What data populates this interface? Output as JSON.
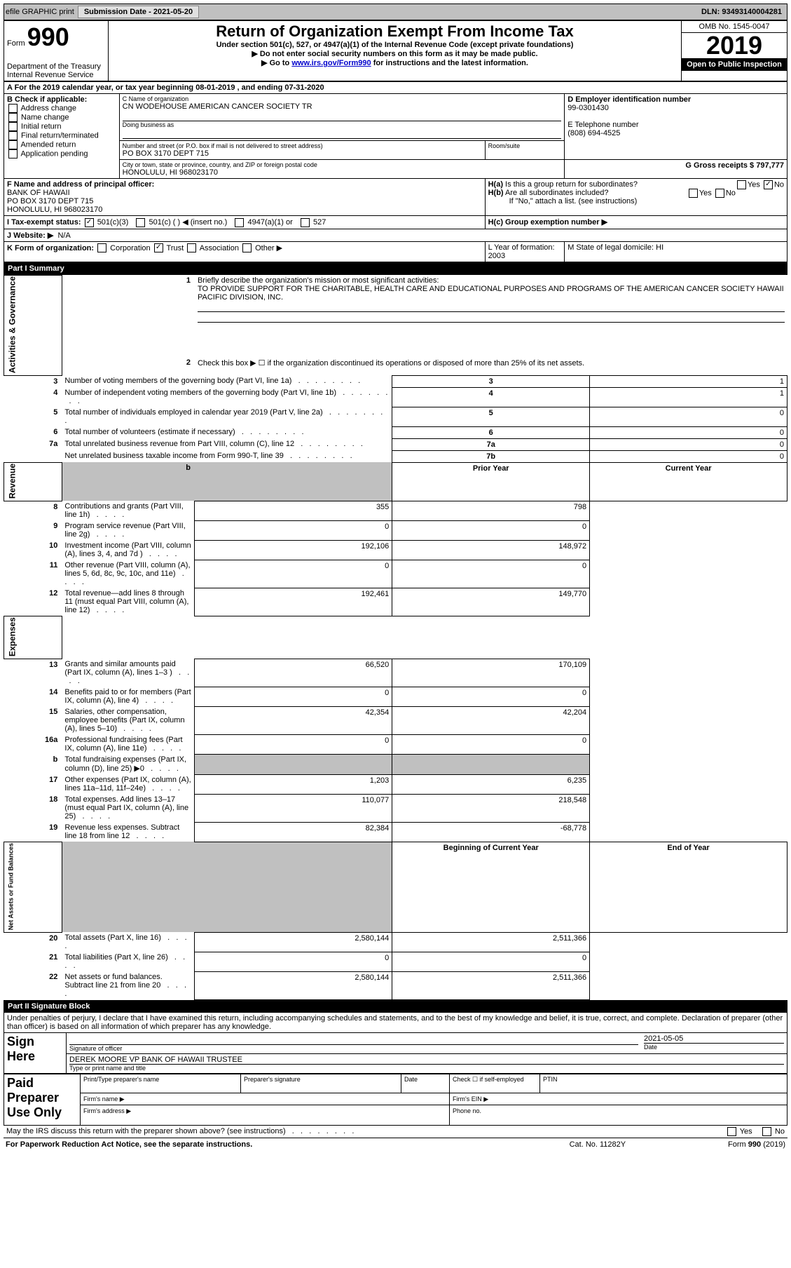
{
  "header": {
    "efile_label": "efile GRAPHIC print",
    "submission_label": "Submission Date - 2021-05-20",
    "dln_label": "DLN: 93493140004281"
  },
  "form_header": {
    "form_prefix": "Form",
    "form_number": "990",
    "title": "Return of Organization Exempt From Income Tax",
    "subtitle": "Under section 501(c), 527, or 4947(a)(1) of the Internal Revenue Code (except private foundations)",
    "note1": "▶ Do not enter social security numbers on this form as it may be made public.",
    "note2_prefix": "▶ Go to ",
    "note2_link": "www.irs.gov/Form990",
    "note2_suffix": " for instructions and the latest information.",
    "dept": "Department of the Treasury",
    "irs": "Internal Revenue Service",
    "omb": "OMB No. 1545-0047",
    "year": "2019",
    "open_public": "Open to Public Inspection"
  },
  "section_a": {
    "line_a": "A For the 2019 calendar year, or tax year beginning 08-01-2019    , and ending 07-31-2020",
    "b_label": "B Check if applicable:",
    "b_items": [
      "Address change",
      "Name change",
      "Initial return",
      "Final return/terminated",
      "Amended return",
      "Application pending"
    ],
    "c_label": "C Name of organization",
    "c_value": "CN WODEHOUSE AMERICAN CANCER SOCIETY TR",
    "dba_label": "Doing business as",
    "c_street_label": "Number and street (or P.O. box if mail is not delivered to street address)",
    "c_street": "PO BOX 3170 DEPT 715",
    "c_room_label": "Room/suite",
    "c_city_label": "City or town, state or province, country, and ZIP or foreign postal code",
    "c_city": "HONOLULU, HI  968023170",
    "d_label": "D Employer identification number",
    "d_value": "99-0301430",
    "e_label": "E Telephone number",
    "e_value": "(808) 694-4525",
    "g_label": "G Gross receipts $ 797,777",
    "f_label": "F  Name and address of principal officer:",
    "f_name": "BANK OF HAWAII",
    "f_street": "PO BOX 3170 DEPT 715",
    "f_city": "HONOLULU, HI  968023170",
    "ha_label": "H(a)  Is this a group return for subordinates?",
    "hb_label": "H(b)  Are all subordinates included?",
    "hb_note": "If \"No,\" attach a list. (see instructions)",
    "hc_label": "H(c)  Group exemption number ▶",
    "yes": "Yes",
    "no": "No",
    "i_label": "I   Tax-exempt status:",
    "i_opt1": "501(c)(3)",
    "i_opt2": "501(c) (   ) ◀ (insert no.)",
    "i_opt3": "4947(a)(1) or",
    "i_opt4": "527",
    "j_label": "J   Website: ▶",
    "j_value": "N/A",
    "k_label": "K Form of organization:",
    "k_opts": [
      "Corporation",
      "Trust",
      "Association",
      "Other ▶"
    ],
    "l_label": "L Year of formation: 2003",
    "m_label": "M State of legal domicile: HI"
  },
  "part1": {
    "header": "Part I      Summary",
    "line1_label": "Briefly describe the organization's mission or most significant activities:",
    "line1_text": "TO PROVIDE SUPPORT FOR THE CHARITABLE, HEALTH CARE AND EDUCATIONAL PURPOSES AND PROGRAMS OF THE AMERICAN CANCER SOCIETY HAWAII PACIFIC DIVISION, INC.",
    "line2": "Check this box ▶ ☐  if the organization discontinued its operations or disposed of more than 25% of its net assets.",
    "vcat1": "Activities & Governance",
    "vcat2": "Revenue",
    "vcat3": "Expenses",
    "vcat4": "Net Assets or Fund Balances",
    "prior_year": "Prior Year",
    "current_year": "Current Year",
    "begin_year": "Beginning of Current Year",
    "end_year": "End of Year",
    "rows_gov": [
      {
        "n": "3",
        "d": "Number of voting members of the governing body (Part VI, line 1a)",
        "box": "3",
        "v": "1"
      },
      {
        "n": "4",
        "d": "Number of independent voting members of the governing body (Part VI, line 1b)",
        "box": "4",
        "v": "1"
      },
      {
        "n": "5",
        "d": "Total number of individuals employed in calendar year 2019 (Part V, line 2a)",
        "box": "5",
        "v": "0"
      },
      {
        "n": "6",
        "d": "Total number of volunteers (estimate if necessary)",
        "box": "6",
        "v": "0"
      },
      {
        "n": "7a",
        "d": "Total unrelated business revenue from Part VIII, column (C), line 12",
        "box": "7a",
        "v": "0"
      },
      {
        "n": "",
        "d": "Net unrelated business taxable income from Form 990-T, line 39",
        "box": "7b",
        "v": "0"
      }
    ],
    "rows_rev": [
      {
        "n": "8",
        "d": "Contributions and grants (Part VIII, line 1h)",
        "p": "355",
        "c": "798"
      },
      {
        "n": "9",
        "d": "Program service revenue (Part VIII, line 2g)",
        "p": "0",
        "c": "0"
      },
      {
        "n": "10",
        "d": "Investment income (Part VIII, column (A), lines 3, 4, and 7d )",
        "p": "192,106",
        "c": "148,972"
      },
      {
        "n": "11",
        "d": "Other revenue (Part VIII, column (A), lines 5, 6d, 8c, 9c, 10c, and 11e)",
        "p": "0",
        "c": "0"
      },
      {
        "n": "12",
        "d": "Total revenue—add lines 8 through 11 (must equal Part VIII, column (A), line 12)",
        "p": "192,461",
        "c": "149,770"
      }
    ],
    "rows_exp": [
      {
        "n": "13",
        "d": "Grants and similar amounts paid (Part IX, column (A), lines 1–3 )",
        "p": "66,520",
        "c": "170,109"
      },
      {
        "n": "14",
        "d": "Benefits paid to or for members (Part IX, column (A), line 4)",
        "p": "0",
        "c": "0"
      },
      {
        "n": "15",
        "d": "Salaries, other compensation, employee benefits (Part IX, column (A), lines 5–10)",
        "p": "42,354",
        "c": "42,204"
      },
      {
        "n": "16a",
        "d": "Professional fundraising fees (Part IX, column (A), line 11e)",
        "p": "0",
        "c": "0"
      },
      {
        "n": "b",
        "d": "Total fundraising expenses (Part IX, column (D), line 25) ▶0",
        "p": "",
        "c": "",
        "gray": true
      },
      {
        "n": "17",
        "d": "Other expenses (Part IX, column (A), lines 11a–11d, 11f–24e)",
        "p": "1,203",
        "c": "6,235"
      },
      {
        "n": "18",
        "d": "Total expenses. Add lines 13–17 (must equal Part IX, column (A), line 25)",
        "p": "110,077",
        "c": "218,548"
      },
      {
        "n": "19",
        "d": "Revenue less expenses. Subtract line 18 from line 12",
        "p": "82,384",
        "c": "-68,778"
      }
    ],
    "rows_net": [
      {
        "n": "20",
        "d": "Total assets (Part X, line 16)",
        "p": "2,580,144",
        "c": "2,511,366"
      },
      {
        "n": "21",
        "d": "Total liabilities (Part X, line 26)",
        "p": "0",
        "c": "0"
      },
      {
        "n": "22",
        "d": "Net assets or fund balances. Subtract line 21 from line 20",
        "p": "2,580,144",
        "c": "2,511,366"
      }
    ]
  },
  "part2": {
    "header": "Part II      Signature Block",
    "declaration": "Under penalties of perjury, I declare that I have examined this return, including accompanying schedules and statements, and to the best of my knowledge and belief, it is true, correct, and complete. Declaration of preparer (other than officer) is based on all information of which preparer has any knowledge.",
    "sign_here": "Sign Here",
    "sig_officer": "Signature of officer",
    "sig_date": "2021-05-05",
    "date_label": "Date",
    "officer_name": "DEREK MOORE VP BANK OF HAWAII TRUSTEE",
    "type_label": "Type or print name and title",
    "paid_prep": "Paid Preparer Use Only",
    "prep_name": "Print/Type preparer's name",
    "prep_sig": "Preparer's signature",
    "check_self": "Check ☐ if self-employed",
    "ptin": "PTIN",
    "firm_name": "Firm's name    ▶",
    "firm_ein": "Firm's EIN ▶",
    "firm_addr": "Firm's address ▶",
    "phone": "Phone no.",
    "may_irs": "May the IRS discuss this return with the preparer shown above? (see instructions)"
  },
  "footer": {
    "paperwork": "For Paperwork Reduction Act Notice, see the separate instructions.",
    "cat": "Cat. No. 11282Y",
    "form": "Form 990 (2019)"
  }
}
